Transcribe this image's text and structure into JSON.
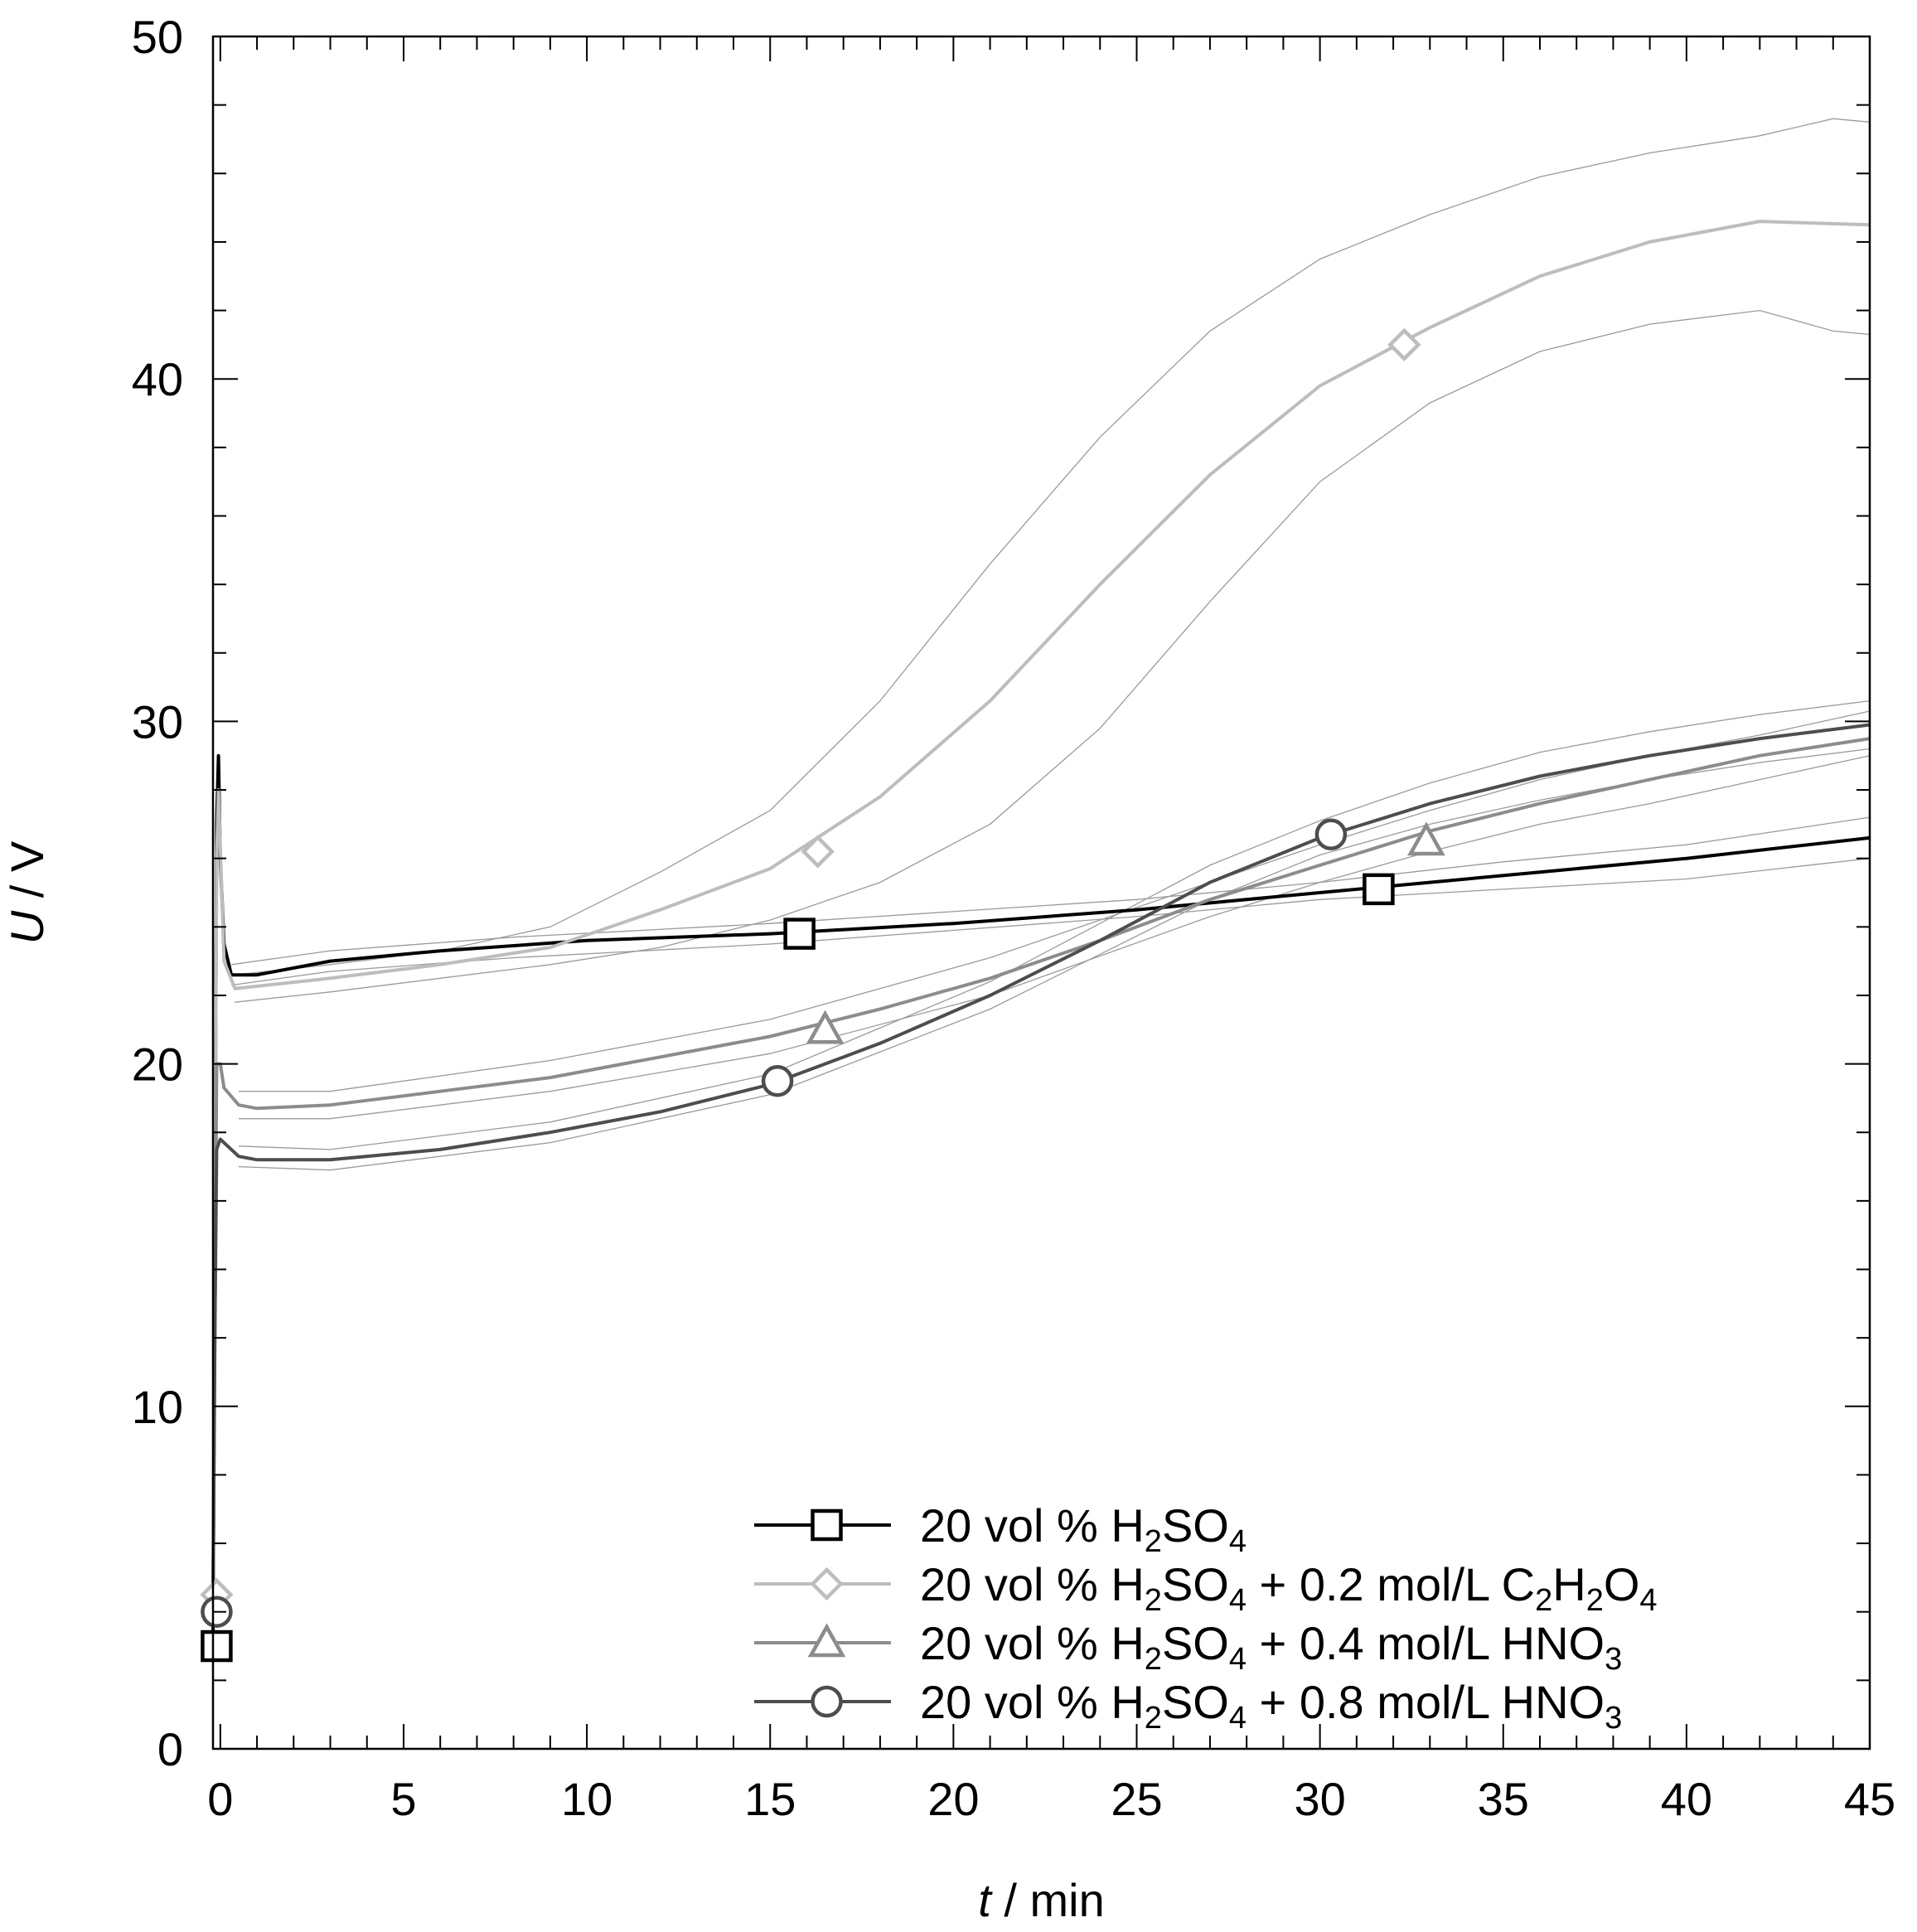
{
  "chart_data": {
    "type": "line",
    "xlabel_var": "t",
    "xlabel_unit": " / min",
    "ylabel_var": "U",
    "ylabel_unit": " / V",
    "xlim": [
      -0.2,
      45
    ],
    "ylim": [
      0,
      50
    ],
    "xticks": [
      0,
      5,
      10,
      15,
      20,
      25,
      30,
      35,
      40,
      45
    ],
    "yticks": [
      0,
      10,
      20,
      30,
      40,
      50
    ],
    "grid": false,
    "legend_position": "bottom-right",
    "series": [
      {
        "name": "20 vol % H2SO4",
        "label_parts": [
          [
            "20 vol % H",
            ""
          ],
          [
            "2",
            "sub"
          ],
          [
            "SO",
            ""
          ],
          [
            "4",
            "sub"
          ]
        ],
        "color": "#000000",
        "marker": "square",
        "points": [
          [
            -0.2,
            3.0
          ],
          [
            -0.15,
            15
          ],
          [
            -0.1,
            27
          ],
          [
            -0.05,
            29
          ],
          [
            0.0,
            26
          ],
          [
            0.1,
            23.5
          ],
          [
            0.3,
            22.6
          ],
          [
            1,
            22.6
          ],
          [
            3,
            23.0
          ],
          [
            6,
            23.3
          ],
          [
            10,
            23.6
          ],
          [
            15,
            23.8
          ],
          [
            20,
            24.1
          ],
          [
            25,
            24.5
          ],
          [
            27,
            24.7
          ],
          [
            30,
            25.0
          ],
          [
            33,
            25.3
          ],
          [
            36,
            25.6
          ],
          [
            40,
            26.0
          ],
          [
            45,
            26.6
          ]
        ],
        "band_upper": [
          [
            0.3,
            22.9
          ],
          [
            3,
            23.3
          ],
          [
            8,
            23.7
          ],
          [
            15,
            24.1
          ],
          [
            25,
            24.8
          ],
          [
            30,
            25.3
          ],
          [
            35,
            25.9
          ],
          [
            40,
            26.4
          ],
          [
            45,
            27.2
          ]
        ],
        "band_lower": [
          [
            0.3,
            22.3
          ],
          [
            3,
            22.7
          ],
          [
            8,
            23.1
          ],
          [
            15,
            23.5
          ],
          [
            25,
            24.3
          ],
          [
            30,
            24.8
          ],
          [
            35,
            25.1
          ],
          [
            40,
            25.4
          ],
          [
            45,
            26.0
          ]
        ],
        "marker_points": [
          [
            -0.1,
            3.0
          ],
          [
            15.8,
            23.8
          ],
          [
            31.6,
            25.1
          ]
        ]
      },
      {
        "name": "20 vol % H2SO4 + 0.2 mol/L C2H2O4",
        "label_parts": [
          [
            "20 vol % H",
            ""
          ],
          [
            "2",
            "sub"
          ],
          [
            "SO",
            ""
          ],
          [
            "4",
            "sub"
          ],
          [
            " + 0.2 mol/L C",
            ""
          ],
          [
            "2",
            "sub"
          ],
          [
            "H",
            ""
          ],
          [
            "2",
            "sub"
          ],
          [
            "O",
            ""
          ],
          [
            "4",
            "sub"
          ]
        ],
        "color": "#bdbdbd",
        "marker": "diamond",
        "points": [
          [
            -0.2,
            4.5
          ],
          [
            -0.15,
            15
          ],
          [
            -0.1,
            26
          ],
          [
            -0.05,
            28
          ],
          [
            0.1,
            23
          ],
          [
            0.4,
            22.2
          ],
          [
            3,
            22.5
          ],
          [
            6,
            22.9
          ],
          [
            9,
            23.4
          ],
          [
            12,
            24.5
          ],
          [
            15,
            25.7
          ],
          [
            18,
            27.8
          ],
          [
            21,
            30.6
          ],
          [
            24,
            34.0
          ],
          [
            27,
            37.2
          ],
          [
            30,
            39.8
          ],
          [
            33,
            41.5
          ],
          [
            36,
            43.0
          ],
          [
            39,
            44.0
          ],
          [
            42,
            44.6
          ],
          [
            45,
            44.5
          ]
        ],
        "band_upper": [
          [
            0.4,
            22.6
          ],
          [
            3,
            22.9
          ],
          [
            6,
            23.3
          ],
          [
            9,
            24.0
          ],
          [
            12,
            25.6
          ],
          [
            15,
            27.4
          ],
          [
            18,
            30.6
          ],
          [
            21,
            34.6
          ],
          [
            24,
            38.3
          ],
          [
            27,
            41.4
          ],
          [
            30,
            43.5
          ],
          [
            33,
            44.8
          ],
          [
            36,
            45.9
          ],
          [
            39,
            46.6
          ],
          [
            42,
            47.1
          ],
          [
            44,
            47.6
          ],
          [
            45,
            47.5
          ]
        ],
        "band_lower": [
          [
            0.4,
            21.8
          ],
          [
            3,
            22.1
          ],
          [
            6,
            22.5
          ],
          [
            9,
            22.9
          ],
          [
            12,
            23.4
          ],
          [
            15,
            24.2
          ],
          [
            18,
            25.3
          ],
          [
            21,
            27.0
          ],
          [
            24,
            29.8
          ],
          [
            27,
            33.5
          ],
          [
            30,
            37.0
          ],
          [
            33,
            39.3
          ],
          [
            36,
            40.8
          ],
          [
            39,
            41.6
          ],
          [
            42,
            42.0
          ],
          [
            44,
            41.4
          ],
          [
            45,
            41.3
          ]
        ],
        "marker_points": [
          [
            -0.1,
            4.5
          ],
          [
            16.3,
            26.2
          ],
          [
            32.3,
            41.0
          ]
        ]
      },
      {
        "name": "20 vol % H2SO4 + 0.4 mol/L HNO3",
        "label_parts": [
          [
            "20 vol % H",
            ""
          ],
          [
            "2",
            "sub"
          ],
          [
            "SO",
            ""
          ],
          [
            "4",
            "sub"
          ],
          [
            " + 0.4 mol/L HNO",
            ""
          ],
          [
            "3",
            "sub"
          ]
        ],
        "color": "#8c8c8c",
        "marker": "triangle",
        "points": [
          [
            -0.2,
            4.0
          ],
          [
            -0.15,
            12
          ],
          [
            -0.1,
            20
          ],
          [
            0.0,
            20
          ],
          [
            0.1,
            19.3
          ],
          [
            0.5,
            18.8
          ],
          [
            1,
            18.7
          ],
          [
            3,
            18.8
          ],
          [
            6,
            19.2
          ],
          [
            9,
            19.6
          ],
          [
            12,
            20.2
          ],
          [
            15,
            20.8
          ],
          [
            18,
            21.6
          ],
          [
            21,
            22.5
          ],
          [
            24,
            23.6
          ],
          [
            27,
            24.8
          ],
          [
            30,
            25.8
          ],
          [
            33,
            26.8
          ],
          [
            36,
            27.6
          ],
          [
            39,
            28.3
          ],
          [
            42,
            29.0
          ],
          [
            45,
            29.5
          ]
        ],
        "band_upper": [
          [
            0.5,
            19.2
          ],
          [
            3,
            19.2
          ],
          [
            9,
            20.1
          ],
          [
            15,
            21.3
          ],
          [
            21,
            23.1
          ],
          [
            27,
            25.3
          ],
          [
            30,
            26.4
          ],
          [
            33,
            27.4
          ],
          [
            36,
            28.3
          ],
          [
            39,
            29.0
          ],
          [
            42,
            29.6
          ],
          [
            45,
            30.3
          ]
        ],
        "band_lower": [
          [
            0.5,
            18.4
          ],
          [
            3,
            18.4
          ],
          [
            9,
            19.2
          ],
          [
            15,
            20.3
          ],
          [
            21,
            22.0
          ],
          [
            27,
            24.3
          ],
          [
            30,
            25.3
          ],
          [
            33,
            26.2
          ],
          [
            36,
            27.0
          ],
          [
            39,
            27.6
          ],
          [
            42,
            28.3
          ],
          [
            45,
            29.0
          ]
        ],
        "marker_points": [
          [
            16.5,
            21.0
          ],
          [
            32.9,
            26.5
          ]
        ]
      },
      {
        "name": "20 vol % H2SO4 + 0.8 mol/L HNO3",
        "label_parts": [
          [
            "20 vol % H",
            ""
          ],
          [
            "2",
            "sub"
          ],
          [
            "SO",
            ""
          ],
          [
            "4",
            "sub"
          ],
          [
            " + 0.8 mol/L HNO",
            ""
          ],
          [
            "3",
            "sub"
          ]
        ],
        "color": "#4d4d4d",
        "marker": "circle",
        "points": [
          [
            -0.2,
            4.0
          ],
          [
            -0.15,
            12
          ],
          [
            -0.1,
            17.5
          ],
          [
            0.0,
            17.8
          ],
          [
            0.2,
            17.6
          ],
          [
            0.5,
            17.3
          ],
          [
            1,
            17.2
          ],
          [
            3,
            17.2
          ],
          [
            6,
            17.5
          ],
          [
            9,
            18.0
          ],
          [
            12,
            18.6
          ],
          [
            15,
            19.4
          ],
          [
            18,
            20.6
          ],
          [
            21,
            22.0
          ],
          [
            24,
            23.6
          ],
          [
            27,
            25.3
          ],
          [
            30,
            26.6
          ],
          [
            33,
            27.6
          ],
          [
            36,
            28.4
          ],
          [
            39,
            29.0
          ],
          [
            42,
            29.5
          ],
          [
            45,
            29.9
          ]
        ],
        "band_upper": [
          [
            0.5,
            17.6
          ],
          [
            3,
            17.5
          ],
          [
            9,
            18.3
          ],
          [
            15,
            19.7
          ],
          [
            21,
            22.4
          ],
          [
            27,
            25.8
          ],
          [
            30,
            27.1
          ],
          [
            33,
            28.2
          ],
          [
            36,
            29.1
          ],
          [
            39,
            29.7
          ],
          [
            42,
            30.2
          ],
          [
            45,
            30.6
          ]
        ],
        "band_lower": [
          [
            0.5,
            17.0
          ],
          [
            3,
            16.9
          ],
          [
            9,
            17.7
          ],
          [
            15,
            19.1
          ],
          [
            21,
            21.6
          ],
          [
            27,
            24.8
          ],
          [
            30,
            26.1
          ],
          [
            33,
            27.0
          ],
          [
            36,
            27.7
          ],
          [
            39,
            28.3
          ],
          [
            42,
            28.8
          ],
          [
            45,
            29.2
          ]
        ],
        "marker_points": [
          [
            -0.1,
            4.0
          ],
          [
            15.2,
            19.5
          ],
          [
            30.3,
            26.7
          ]
        ]
      }
    ]
  }
}
